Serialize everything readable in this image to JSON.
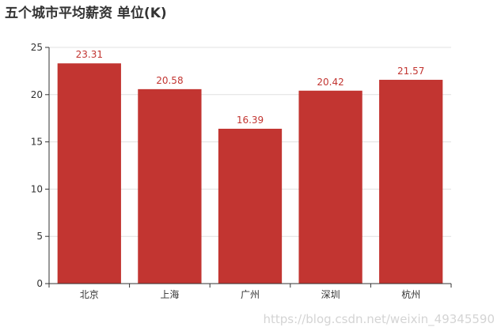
{
  "chart_data": {
    "type": "bar",
    "title": "五个城市平均薪资 单位(K)",
    "categories": [
      "北京",
      "上海",
      "广州",
      "深圳",
      "杭州"
    ],
    "series": [
      {
        "values": [
          23.31,
          20.58,
          16.39,
          20.42,
          21.57
        ]
      }
    ],
    "data_labels": [
      "23.31",
      "20.58",
      "16.39",
      "20.42",
      "21.57"
    ],
    "y_ticks": [
      "0",
      "5",
      "10",
      "15",
      "20",
      "25"
    ],
    "ylim": [
      0,
      25
    ],
    "grid": true,
    "legend": "none",
    "colors": {
      "bar": "#c23531",
      "label": "#c23531",
      "axis": "#333333",
      "grid": "#e0e0e0"
    }
  },
  "watermark": "https://blog.csdn.net/weixin_49345590"
}
